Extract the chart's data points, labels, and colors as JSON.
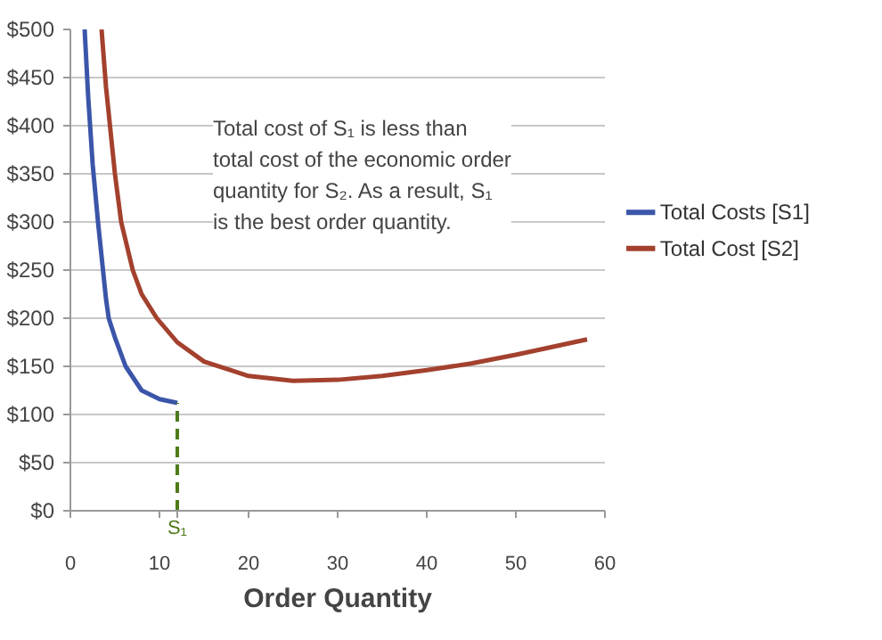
{
  "chart_data": {
    "type": "line",
    "xlabel": "Order Quantity",
    "series": [
      {
        "name": "Total Costs [S1]",
        "color": "#3b55a8",
        "x": [
          1.6,
          2,
          2.5,
          3.1,
          4,
          4.3,
          5,
          6.2,
          8,
          10,
          12
        ],
        "values": [
          500,
          430,
          360,
          300,
          220,
          200,
          180,
          150,
          125,
          116,
          112
        ]
      },
      {
        "name": "Total Cost [S2]",
        "color": "#a3412e",
        "x": [
          3.5,
          4,
          5,
          5.7,
          7,
          8,
          9.7,
          12,
          15,
          20,
          25,
          30,
          35,
          40,
          45,
          50,
          55,
          58
        ],
        "values": [
          500,
          440,
          350,
          300,
          250,
          225,
          200,
          175,
          155,
          140,
          135,
          136,
          140,
          146,
          153,
          162,
          172,
          178
        ]
      },
      {
        "color": "#4f7a1a",
        "line_style": "dashed",
        "x": [
          12,
          12
        ],
        "values": [
          0,
          112
        ]
      }
    ],
    "annotations": [
      "Total cost of S₁ is less than total cost of the economic order quantity for S₂.  As a result, S₁ is the best order quantity.",
      {
        "text": "S₁",
        "x": 12,
        "y": 0
      }
    ],
    "xlim": [
      0,
      60
    ],
    "xticks": [
      0,
      10,
      20,
      30,
      40,
      50,
      60
    ],
    "ylim": [
      0,
      500
    ],
    "yticks": [
      {
        "value": 0,
        "label": "$0"
      },
      {
        "value": 50,
        "label": "$50"
      },
      {
        "value": 100,
        "label": "$100"
      },
      {
        "value": 150,
        "label": "$150"
      },
      {
        "value": 200,
        "label": "$200"
      },
      {
        "value": 250,
        "label": "$250"
      },
      {
        "value": 300,
        "label": "$300"
      },
      {
        "value": 350,
        "label": "$350"
      },
      {
        "value": 400,
        "label": "$400"
      },
      {
        "value": 450,
        "label": "$450"
      },
      {
        "value": 500,
        "label": "$500"
      }
    ],
    "grid": "y",
    "legend": "right"
  }
}
